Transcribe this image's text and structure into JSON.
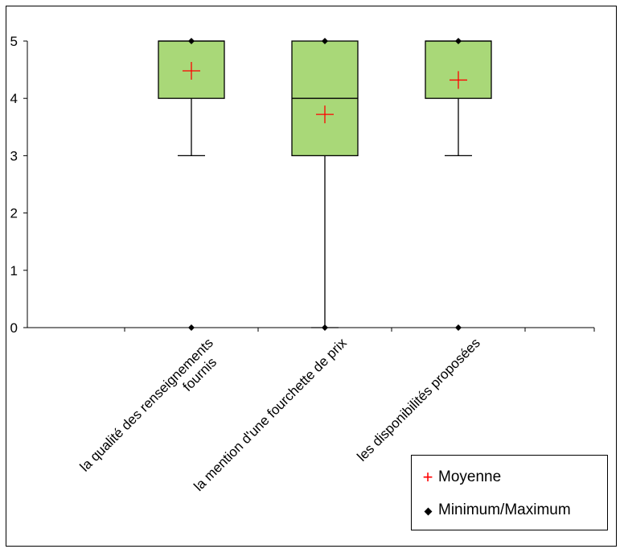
{
  "chart_data": {
    "type": "box",
    "categories": [
      "la qualité des renseignements fournis",
      "la mention d'une fourchette de prix",
      "les disponibilités proposées"
    ],
    "boxes": [
      {
        "min": 0,
        "whisker_low": 3,
        "q1": 4,
        "median": 5,
        "q3": 5,
        "whisker_high": 5,
        "max": 5,
        "mean": 4.48
      },
      {
        "min": 0,
        "whisker_low": 0,
        "q1": 3,
        "median": 4,
        "q3": 5,
        "whisker_high": 5,
        "max": 5,
        "mean": 3.72
      },
      {
        "min": 0,
        "whisker_low": 3,
        "q1": 4,
        "median": 5,
        "q3": 5,
        "whisker_high": 5,
        "max": 5,
        "mean": 4.32
      }
    ],
    "ylim": [
      0,
      5
    ],
    "yticks": [
      "0",
      "1",
      "2",
      "3",
      "4",
      "5"
    ],
    "box_color": "#a9d878",
    "mean_color": "#ff0000",
    "legend": {
      "position": "bottom-right",
      "mean_label": "Moyenne",
      "minmax_label": "Minimum/Maximum"
    }
  }
}
